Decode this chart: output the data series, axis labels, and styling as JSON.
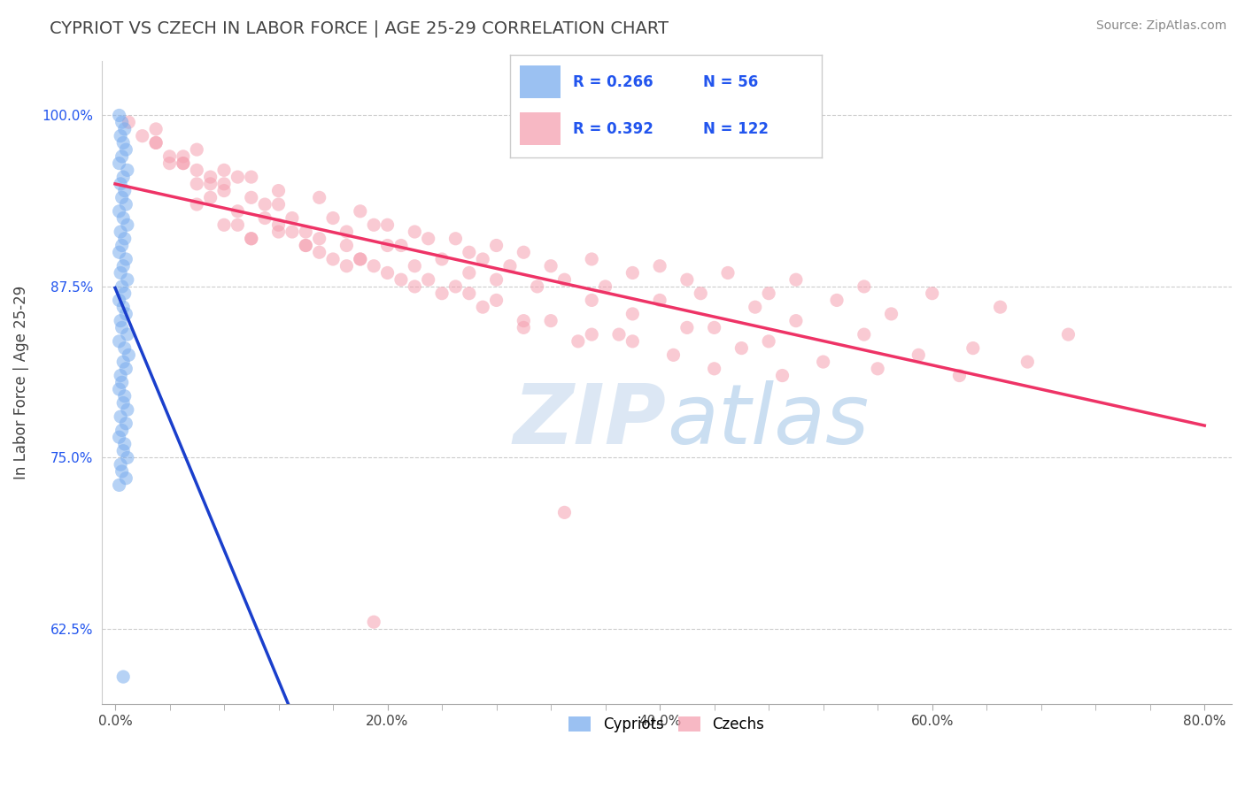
{
  "title": "CYPRIOT VS CZECH IN LABOR FORCE | AGE 25-29 CORRELATION CHART",
  "ylabel": "In Labor Force | Age 25-29",
  "source_text": "Source: ZipAtlas.com",
  "x_tick_labels": [
    "0.0%",
    "",
    "",
    "",
    "",
    "20.0%",
    "",
    "",
    "",
    "",
    "40.0%",
    "",
    "",
    "",
    "",
    "60.0%",
    "",
    "",
    "",
    "",
    "80.0%"
  ],
  "x_tick_values": [
    0,
    4,
    8,
    12,
    16,
    20,
    24,
    28,
    32,
    36,
    40,
    44,
    48,
    52,
    56,
    60,
    64,
    68,
    72,
    76,
    80
  ],
  "x_label_ticks": [
    0,
    20,
    40,
    60,
    80
  ],
  "x_label_texts": [
    "0.0%",
    "20.0%",
    "40.0%",
    "60.0%",
    "80.0%"
  ],
  "y_tick_labels": [
    "62.5%",
    "75.0%",
    "87.5%",
    "100.0%"
  ],
  "y_tick_values": [
    62.5,
    75.0,
    87.5,
    100.0
  ],
  "xlim": [
    -1.0,
    82.0
  ],
  "ylim": [
    57.0,
    104.0
  ],
  "legend_entries": [
    {
      "label": "Cypriots",
      "R": "0.266",
      "N": "56",
      "color": "#7aadee"
    },
    {
      "label": "Czechs",
      "R": "0.392",
      "N": "122",
      "color": "#f5a0b0"
    }
  ],
  "cypriot_scatter_x": [
    0.3,
    0.5,
    0.7,
    0.4,
    0.6,
    0.8,
    0.5,
    0.3,
    0.9,
    0.6,
    0.4,
    0.7,
    0.5,
    0.8,
    0.3,
    0.6,
    0.9,
    0.4,
    0.7,
    0.5,
    0.3,
    0.8,
    0.6,
    0.4,
    0.9,
    0.5,
    0.7,
    0.3,
    0.6,
    0.8,
    0.4,
    0.5,
    0.9,
    0.3,
    0.7,
    1.0,
    0.6,
    0.8,
    0.4,
    0.5,
    0.3,
    0.7,
    0.6,
    0.9,
    0.4,
    0.8,
    0.5,
    0.3,
    0.7,
    0.6,
    0.9,
    0.4,
    0.5,
    0.8,
    0.3,
    0.6
  ],
  "cypriot_scatter_y": [
    100.0,
    99.5,
    99.0,
    98.5,
    98.0,
    97.5,
    97.0,
    96.5,
    96.0,
    95.5,
    95.0,
    94.5,
    94.0,
    93.5,
    93.0,
    92.5,
    92.0,
    91.5,
    91.0,
    90.5,
    90.0,
    89.5,
    89.0,
    88.5,
    88.0,
    87.5,
    87.0,
    86.5,
    86.0,
    85.5,
    85.0,
    84.5,
    84.0,
    83.5,
    83.0,
    82.5,
    82.0,
    81.5,
    81.0,
    80.5,
    80.0,
    79.5,
    79.0,
    78.5,
    78.0,
    77.5,
    77.0,
    76.5,
    76.0,
    75.5,
    75.0,
    74.5,
    74.0,
    73.5,
    73.0,
    59.0
  ],
  "czech_scatter_x": [
    1.0,
    3.0,
    5.0,
    2.0,
    4.0,
    8.0,
    6.0,
    10.0,
    3.0,
    7.0,
    12.0,
    5.0,
    9.0,
    15.0,
    4.0,
    11.0,
    8.0,
    18.0,
    6.0,
    13.0,
    20.0,
    3.0,
    16.0,
    7.0,
    22.0,
    10.0,
    25.0,
    5.0,
    14.0,
    19.0,
    28.0,
    8.0,
    23.0,
    12.0,
    30.0,
    6.0,
    17.0,
    26.0,
    35.0,
    9.0,
    21.0,
    15.0,
    32.0,
    40.0,
    11.0,
    27.0,
    20.0,
    45.0,
    7.0,
    33.0,
    13.0,
    38.0,
    50.0,
    24.0,
    17.0,
    42.0,
    29.0,
    55.0,
    10.0,
    36.0,
    22.0,
    48.0,
    60.0,
    14.0,
    31.0,
    43.0,
    18.0,
    53.0,
    8.0,
    26.0,
    40.0,
    65.0,
    19.0,
    35.0,
    47.0,
    12.0,
    28.0,
    57.0,
    6.0,
    23.0,
    38.0,
    50.0,
    16.0,
    32.0,
    44.0,
    70.0,
    9.0,
    25.0,
    42.0,
    30.0,
    20.0,
    15.0,
    55.0,
    37.0,
    48.0,
    26.0,
    63.0,
    10.0,
    34.0,
    22.0,
    46.0,
    18.0,
    59.0,
    28.0,
    41.0,
    14.0,
    52.0,
    35.0,
    24.0,
    67.0,
    17.0,
    44.0,
    30.0,
    56.0,
    21.0,
    38.0,
    12.0,
    49.0,
    27.0,
    62.0,
    33.0,
    19.0
  ],
  "czech_scatter_y": [
    99.5,
    98.0,
    97.0,
    98.5,
    96.5,
    96.0,
    97.5,
    95.5,
    99.0,
    95.0,
    94.5,
    96.5,
    95.5,
    94.0,
    97.0,
    93.5,
    95.0,
    93.0,
    96.0,
    92.5,
    92.0,
    98.0,
    92.5,
    95.5,
    91.5,
    94.0,
    91.0,
    96.5,
    91.5,
    92.0,
    90.5,
    94.5,
    91.0,
    93.5,
    90.0,
    95.0,
    91.5,
    90.0,
    89.5,
    93.0,
    90.5,
    91.0,
    89.0,
    89.0,
    92.5,
    89.5,
    90.5,
    88.5,
    94.0,
    88.0,
    91.5,
    88.5,
    88.0,
    89.5,
    90.5,
    88.0,
    89.0,
    87.5,
    91.0,
    87.5,
    89.0,
    87.0,
    87.0,
    90.5,
    87.5,
    87.0,
    89.5,
    86.5,
    92.0,
    88.5,
    86.5,
    86.0,
    89.0,
    86.5,
    86.0,
    91.5,
    88.0,
    85.5,
    93.5,
    88.0,
    85.5,
    85.0,
    89.5,
    85.0,
    84.5,
    84.0,
    92.0,
    87.5,
    84.5,
    84.5,
    88.5,
    90.0,
    84.0,
    84.0,
    83.5,
    87.0,
    83.0,
    91.0,
    83.5,
    87.5,
    83.0,
    89.5,
    82.5,
    86.5,
    82.5,
    90.5,
    82.0,
    84.0,
    87.0,
    82.0,
    89.0,
    81.5,
    85.0,
    81.5,
    88.0,
    83.5,
    92.0,
    81.0,
    86.0,
    81.0,
    71.0,
    63.0
  ],
  "cypriot_line_color": "#1a3fcc",
  "czech_line_color": "#ee3366",
  "scatter_alpha": 0.55,
  "scatter_size": 120,
  "grid_color": "#cccccc",
  "background_color": "#ffffff",
  "watermark_color": "#c5d8ed",
  "watermark_alpha": 0.6,
  "legend_R_N_color": "#2255ee",
  "title_color": "#444444",
  "source_color": "#888888"
}
